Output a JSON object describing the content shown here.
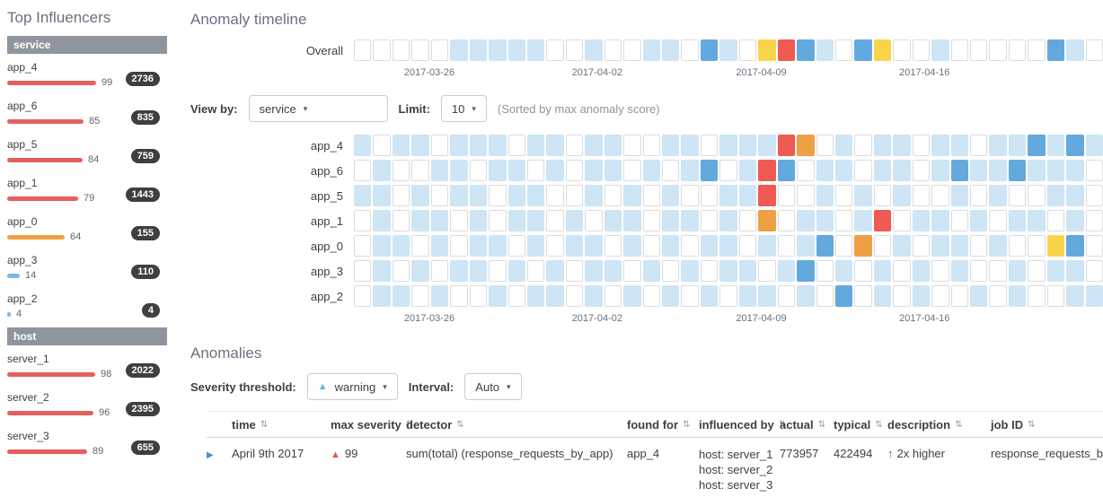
{
  "sidebar": {
    "title": "Top Influencers",
    "sections": [
      {
        "label": "service",
        "items": [
          {
            "name": "app_4",
            "score": "99",
            "count": "2736",
            "level": "critical"
          },
          {
            "name": "app_6",
            "score": "85",
            "count": "835",
            "level": "critical"
          },
          {
            "name": "app_5",
            "score": "84",
            "count": "759",
            "level": "critical"
          },
          {
            "name": "app_1",
            "score": "79",
            "count": "1443",
            "level": "critical"
          },
          {
            "name": "app_0",
            "score": "64",
            "count": "155",
            "level": "major"
          },
          {
            "name": "app_3",
            "score": "14",
            "count": "110",
            "level": "low"
          },
          {
            "name": "app_2",
            "score": "4",
            "count": "4",
            "level": "low"
          }
        ]
      },
      {
        "label": "host",
        "items": [
          {
            "name": "server_1",
            "score": "98",
            "count": "2022",
            "level": "critical"
          },
          {
            "name": "server_2",
            "score": "96",
            "count": "2395",
            "level": "critical"
          },
          {
            "name": "server_3",
            "score": "89",
            "count": "655",
            "level": "critical"
          }
        ]
      }
    ]
  },
  "timeline": {
    "title": "Anomaly timeline",
    "controls": {
      "view_by_label": "View by:",
      "view_by_value": "service",
      "limit_label": "Limit:",
      "limit_value": "10",
      "note": "(Sorted by max anomaly score)"
    },
    "axis_dates": [
      {
        "label": "2017-03-26",
        "pos": 6.7
      },
      {
        "label": "2017-04-02",
        "pos": 29.1
      },
      {
        "label": "2017-04-09",
        "pos": 51.0
      },
      {
        "label": "2017-04-16",
        "pos": 72.8
      }
    ],
    "overall_lane": {
      "label": "Overall",
      "cells": [
        0,
        0,
        0,
        0,
        0,
        1,
        1,
        1,
        1,
        1,
        0,
        0,
        1,
        0,
        0,
        1,
        1,
        0,
        2,
        1,
        0,
        3,
        5,
        2,
        1,
        0,
        2,
        3,
        0,
        0,
        1,
        0,
        0,
        0,
        0,
        0,
        2,
        1,
        0
      ]
    },
    "lanes": [
      {
        "label": "app_4",
        "cells": [
          1,
          0,
          1,
          1,
          0,
          1,
          1,
          1,
          0,
          1,
          1,
          0,
          1,
          1,
          0,
          0,
          1,
          1,
          0,
          1,
          1,
          1,
          5,
          4,
          0,
          1,
          0,
          1,
          1,
          0,
          1,
          1,
          0,
          1,
          1,
          2,
          1,
          2,
          1
        ]
      },
      {
        "label": "app_6",
        "cells": [
          0,
          1,
          0,
          0,
          1,
          1,
          0,
          1,
          1,
          0,
          1,
          0,
          1,
          1,
          0,
          1,
          0,
          1,
          2,
          0,
          1,
          5,
          2,
          0,
          1,
          1,
          0,
          1,
          1,
          0,
          1,
          2,
          1,
          1,
          2,
          1,
          1,
          1,
          0
        ]
      },
      {
        "label": "app_5",
        "cells": [
          1,
          1,
          0,
          1,
          0,
          1,
          1,
          0,
          1,
          1,
          0,
          0,
          1,
          0,
          1,
          0,
          1,
          0,
          0,
          1,
          1,
          5,
          0,
          0,
          1,
          0,
          1,
          0,
          1,
          0,
          0,
          1,
          0,
          1,
          0,
          0,
          1,
          1,
          0
        ]
      },
      {
        "label": "app_1",
        "cells": [
          0,
          1,
          0,
          1,
          1,
          0,
          1,
          0,
          1,
          1,
          0,
          1,
          0,
          1,
          1,
          0,
          1,
          1,
          0,
          1,
          0,
          4,
          0,
          1,
          1,
          0,
          1,
          5,
          0,
          1,
          1,
          0,
          1,
          0,
          1,
          1,
          0,
          1,
          0
        ]
      },
      {
        "label": "app_0",
        "cells": [
          0,
          1,
          1,
          0,
          1,
          0,
          1,
          1,
          0,
          1,
          0,
          1,
          1,
          0,
          1,
          0,
          1,
          0,
          1,
          1,
          0,
          1,
          0,
          1,
          2,
          0,
          4,
          0,
          1,
          0,
          1,
          1,
          0,
          1,
          0,
          0,
          3,
          2,
          0
        ]
      },
      {
        "label": "app_3",
        "cells": [
          0,
          1,
          0,
          1,
          0,
          1,
          1,
          0,
          1,
          0,
          1,
          0,
          1,
          1,
          0,
          1,
          0,
          1,
          0,
          1,
          1,
          0,
          1,
          2,
          0,
          1,
          0,
          1,
          0,
          1,
          0,
          1,
          0,
          0,
          1,
          0,
          1,
          1,
          0
        ]
      },
      {
        "label": "app_2",
        "cells": [
          0,
          1,
          1,
          0,
          1,
          0,
          0,
          1,
          0,
          1,
          1,
          0,
          1,
          0,
          1,
          0,
          1,
          0,
          1,
          0,
          1,
          1,
          0,
          1,
          0,
          2,
          0,
          1,
          0,
          1,
          0,
          0,
          1,
          0,
          1,
          0,
          0,
          1,
          1
        ]
      }
    ],
    "severity_levels": {
      "0": "empty",
      "1": "low",
      "2": "warning",
      "3": "minor",
      "4": "major",
      "5": "critical"
    }
  },
  "anomalies": {
    "title": "Anomalies",
    "controls": {
      "severity_label": "Severity threshold:",
      "severity_value": "warning",
      "interval_label": "Interval:",
      "interval_value": "Auto"
    },
    "table": {
      "headers": [
        "time",
        "max severity",
        "detector",
        "found for",
        "influenced by",
        "actual",
        "typical",
        "description",
        "job ID"
      ],
      "rows": [
        {
          "time": "April 9th 2017",
          "max_severity": "99",
          "detector": "sum(total) (response_requests_by_app)",
          "found_for": "app_4",
          "influenced_by": [
            "host: server_1",
            "host: server_2",
            "host: server_3"
          ],
          "actual": "773957",
          "typical": "422494",
          "description": "2x higher",
          "job_id": "response_requests_by_app"
        }
      ]
    }
  }
}
